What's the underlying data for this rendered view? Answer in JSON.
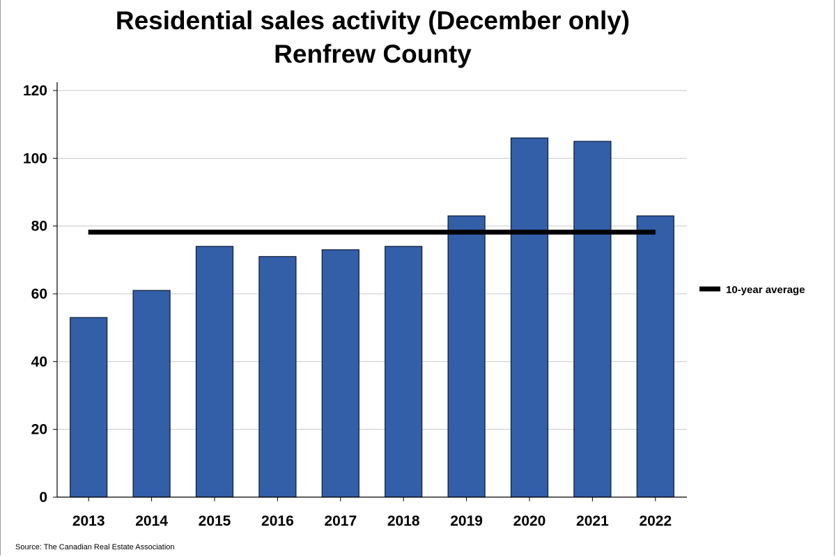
{
  "chart_data": {
    "type": "bar",
    "title": "Residential sales activity (December only)",
    "subtitle": "Renfrew County",
    "categories": [
      "2013",
      "2014",
      "2015",
      "2016",
      "2017",
      "2018",
      "2019",
      "2020",
      "2021",
      "2022"
    ],
    "series": [
      {
        "values": [
          53,
          61,
          74,
          71,
          73,
          74,
          83,
          106,
          105,
          83
        ]
      }
    ],
    "reference_line": {
      "name": "10-year average",
      "value": 78.2
    },
    "ylim": [
      0,
      120
    ],
    "yticks": [
      0,
      20,
      40,
      60,
      80,
      100,
      120
    ],
    "xlabel": "",
    "ylabel": "",
    "grid": true,
    "legend_position": "right",
    "colors": {
      "bar": "#335fa8",
      "bar_outline": "#0d1a33",
      "average_line": "#000000",
      "grid": "#c8c8c8"
    }
  },
  "source_note": "Source: The Canadian Real Estate Association"
}
